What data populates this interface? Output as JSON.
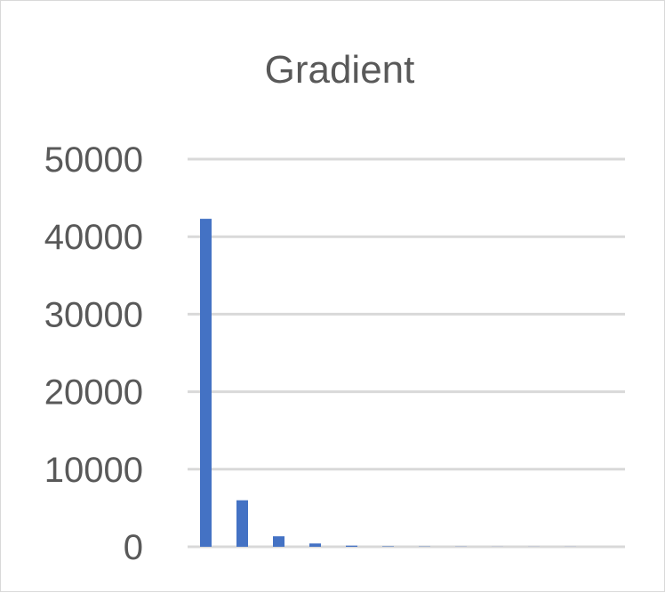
{
  "chart_data": {
    "type": "bar",
    "title": "Gradient",
    "xlabel": "",
    "ylabel": "",
    "ylim": [
      0,
      50000
    ],
    "yticks": [
      0,
      10000,
      20000,
      30000,
      40000,
      50000
    ],
    "grid": true,
    "legend": "none",
    "bar_color": "#4472C4",
    "grid_color": "#d9d9d9",
    "categories": [
      "",
      "",
      "",
      "",
      "",
      "",
      "",
      "",
      "",
      "",
      "",
      ""
    ],
    "values": [
      42300,
      6000,
      1350,
      420,
      150,
      60,
      30,
      20,
      15,
      10,
      10,
      0
    ]
  }
}
